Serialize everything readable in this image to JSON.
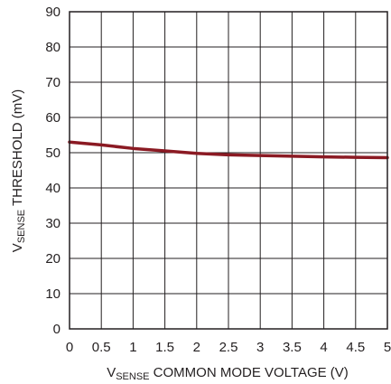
{
  "chart_data": {
    "type": "line",
    "title": "",
    "xlabel": {
      "prefix": "V",
      "subscript": "SENSE",
      "suffix": " COMMON MODE VOLTAGE (V)"
    },
    "ylabel": {
      "prefix": "V",
      "subscript": "SENSE",
      "suffix": " THRESHOLD (mV)"
    },
    "xlim": [
      0,
      5
    ],
    "ylim": [
      0,
      90
    ],
    "x_ticks": [
      0,
      0.5,
      1,
      1.5,
      2,
      2.5,
      3,
      3.5,
      4,
      4.5,
      5
    ],
    "x_tick_labels": [
      "0",
      "0.5",
      "1",
      "1.5",
      "2",
      "2.5",
      "3",
      "3.5",
      "4",
      "4.5",
      "5"
    ],
    "y_ticks": [
      0,
      10,
      20,
      30,
      40,
      50,
      60,
      70,
      80,
      90
    ],
    "y_tick_labels": [
      "0",
      "10",
      "20",
      "30",
      "40",
      "50",
      "60",
      "70",
      "80",
      "90"
    ],
    "grid": true,
    "series": [
      {
        "color": "#8b1a23",
        "x": [
          0,
          0.5,
          1,
          1.5,
          2,
          2.5,
          3,
          3.5,
          4,
          4.5,
          5
        ],
        "y": [
          53,
          52.2,
          51.2,
          50.5,
          49.8,
          49.4,
          49.2,
          49.0,
          48.8,
          48.7,
          48.6
        ]
      }
    ]
  }
}
